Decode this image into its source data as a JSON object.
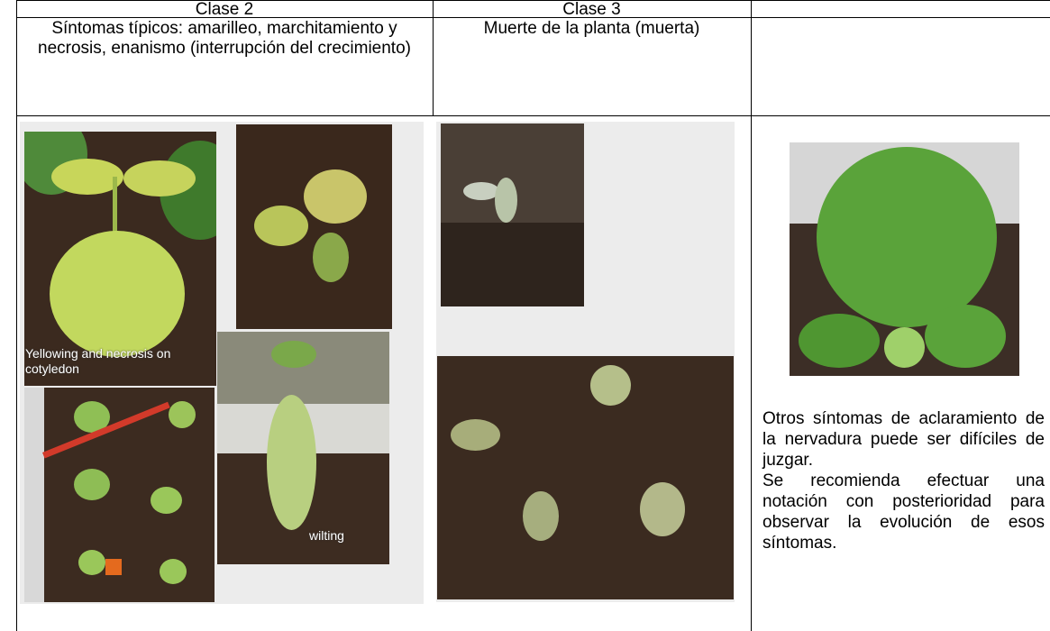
{
  "table": {
    "header": [
      "Clase 2",
      "Clase 3"
    ],
    "description": [
      "Síntomas típicos: amarilleo, marchitamiento y necrosis, enanismo (interrupción del crecimiento)",
      "Muerte de la planta (muerta)"
    ],
    "photo_captions": [
      "Yellowing and necrosis on cotyledon",
      "wilting"
    ],
    "notes": [
      "Otros síntomas de aclaramiento de la nervadura puede ser difíciles de juzgar.",
      "Se recomienda efectuar una notación con posterioridad para observar la evolución de esos síntomas."
    ]
  }
}
